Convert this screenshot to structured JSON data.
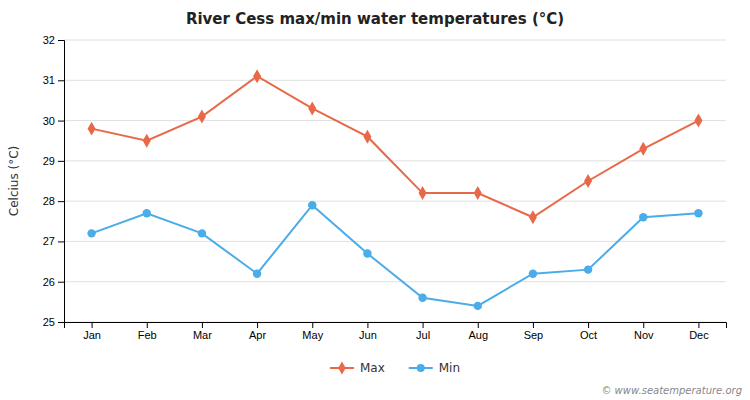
{
  "chart_data": {
    "type": "line",
    "title": "River Cess max/min water temperatures (°C)",
    "ylabel": "Celcius (°C)",
    "categories": [
      "Jan",
      "Feb",
      "Mar",
      "Apr",
      "May",
      "Jun",
      "Jul",
      "Aug",
      "Sep",
      "Oct",
      "Nov",
      "Dec"
    ],
    "series": [
      {
        "name": "Max",
        "color": "#e8694a",
        "marker": "diamond",
        "values": [
          29.8,
          29.5,
          30.1,
          31.1,
          30.3,
          29.6,
          28.2,
          28.2,
          27.6,
          28.5,
          29.3,
          30.0
        ]
      },
      {
        "name": "Min",
        "color": "#4aace8",
        "marker": "circle",
        "values": [
          27.2,
          27.7,
          27.2,
          26.2,
          27.9,
          26.7,
          25.6,
          25.4,
          26.2,
          26.3,
          27.6,
          27.7
        ]
      }
    ],
    "ylim": [
      25,
      32
    ],
    "yticks": [
      25,
      26,
      27,
      28,
      29,
      30,
      31,
      32
    ],
    "grid": true,
    "legend": "bottom",
    "annotations": [
      "© www.seatemperature.org"
    ]
  }
}
